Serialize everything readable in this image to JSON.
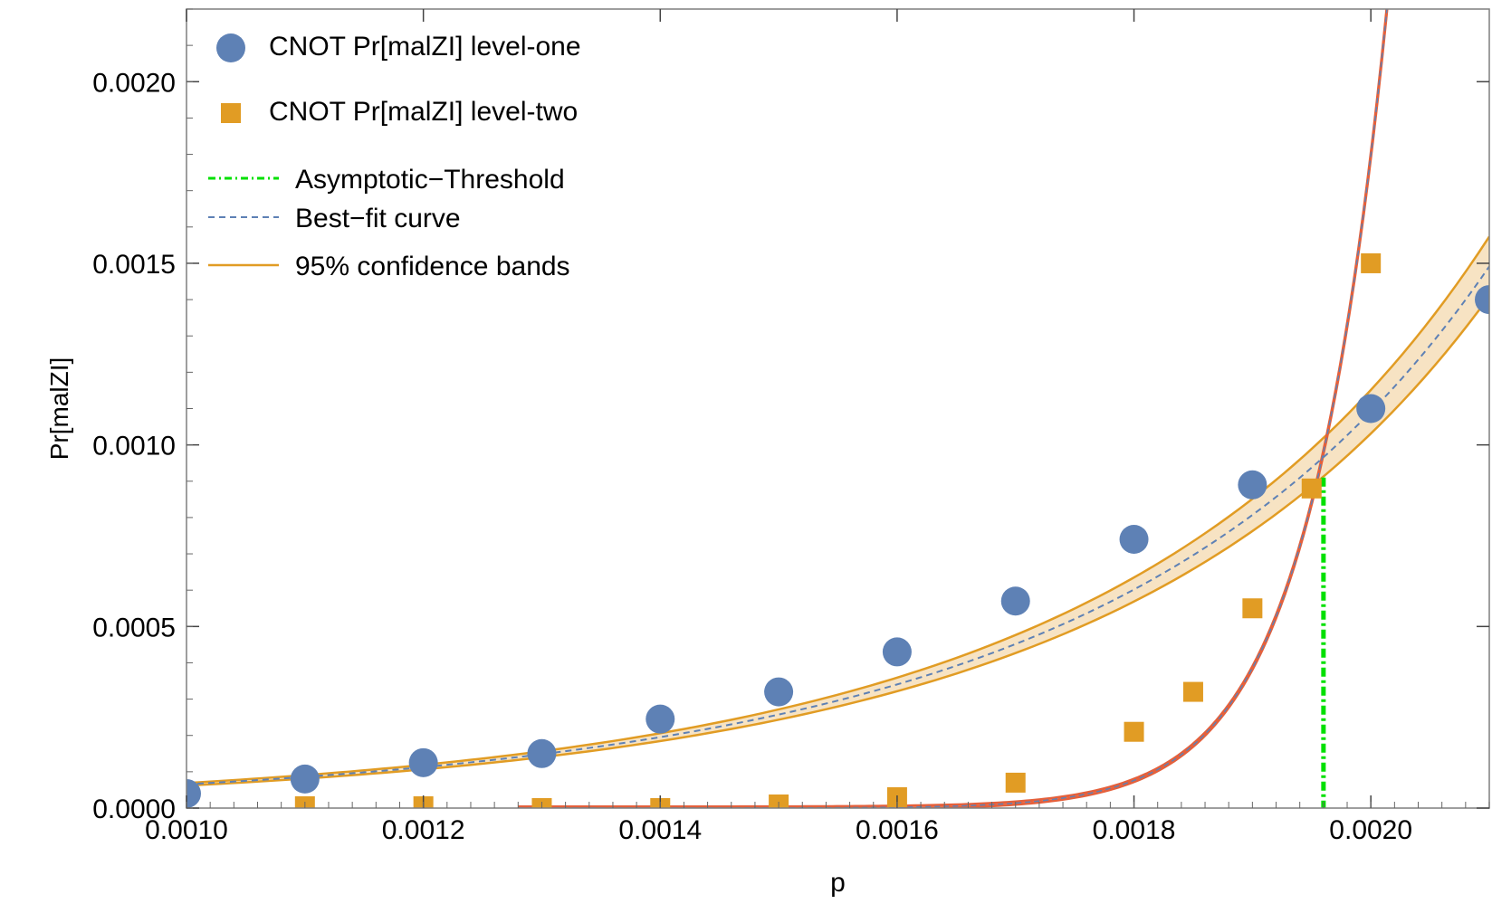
{
  "chart_data": {
    "type": "scatter",
    "xlabel": "p",
    "ylabel": "Pr[malZI]",
    "xlim": [
      0.001,
      0.0021
    ],
    "ylim": [
      0.0,
      0.0022
    ],
    "x_ticks": [
      "0.0010",
      "0.0012",
      "0.0014",
      "0.0016",
      "0.0018",
      "0.0020"
    ],
    "x_tick_values": [
      0.001,
      0.0012,
      0.0014,
      0.0016,
      0.0018,
      0.002
    ],
    "y_ticks": [
      "0.0000",
      "0.0005",
      "0.0010",
      "0.0015",
      "0.0020"
    ],
    "y_tick_values": [
      0.0,
      0.0005,
      0.001,
      0.0015,
      0.002
    ],
    "grid": false,
    "legend_position": "top-left",
    "series": [
      {
        "name": "CNOT Pr[malZI] level-one",
        "marker": "circle",
        "color": "#5E81B5",
        "x": [
          0.001,
          0.0011,
          0.0012,
          0.0013,
          0.0014,
          0.0015,
          0.0016,
          0.0017,
          0.0018,
          0.0019,
          0.002,
          0.0021
        ],
        "y": [
          4e-05,
          8e-05,
          0.000125,
          0.00015,
          0.000245,
          0.00032,
          0.00043,
          0.00057,
          0.00074,
          0.00089,
          0.0011,
          0.0014
        ]
      },
      {
        "name": "CNOT Pr[malZI] level-two",
        "marker": "square",
        "color": "#E19C24",
        "x": [
          0.0011,
          0.0012,
          0.0013,
          0.0014,
          0.0015,
          0.0016,
          0.0017,
          0.0018,
          0.00185,
          0.0019,
          0.00195,
          0.002
        ],
        "y": [
          5e-06,
          5e-06,
          0.0,
          0.0,
          1e-05,
          3e-05,
          7e-05,
          0.00021,
          0.00032,
          0.00055,
          0.00088,
          0.0015
        ]
      }
    ],
    "fits": [
      {
        "name": "Best-fit curve",
        "style": "dashed",
        "color": "#5E81B5"
      },
      {
        "name": "95% confidence bands",
        "style": "solid",
        "color": "#E19C24"
      }
    ],
    "threshold": {
      "name": "Asymptotic-Threshold",
      "x": 0.00196,
      "style": "dot-dash",
      "color": "#00E000"
    },
    "legend": [
      "CNOT Pr[malZI] level-one",
      "CNOT Pr[malZI] level-two",
      "Asymptotic−Threshold",
      "Best−fit curve",
      "95% confidence bands"
    ]
  }
}
